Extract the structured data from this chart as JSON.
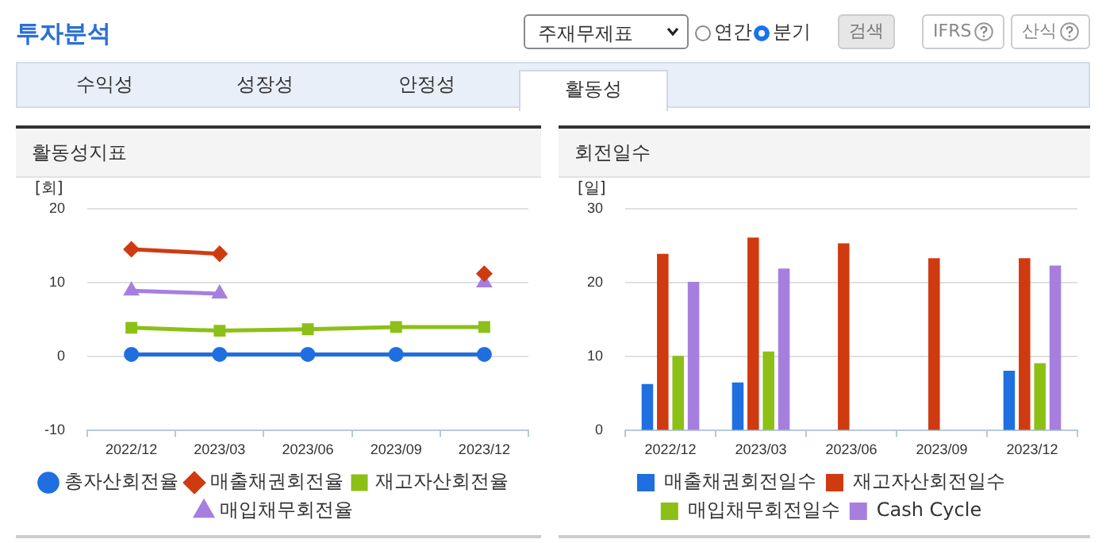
{
  "chart_data": [
    {
      "type": "other",
      "title": "투자분석",
      "annotations": [
        "주재무제표",
        "연간",
        "분기",
        "검색",
        "IFRS",
        "산식",
        "수익성",
        "성장성",
        "안정성",
        "활동성"
      ]
    },
    {
      "type": "line",
      "title": "활동성지표",
      "ylabel": "[회]",
      "categories": [
        "2022/12",
        "2023/03",
        "2023/06",
        "2023/09",
        "2023/12"
      ],
      "ylim": [
        -10,
        20
      ],
      "yticks": [
        -10,
        0,
        10,
        20
      ],
      "grid": "y",
      "legend": "bottom",
      "series": [
        {
          "name": "총자산회전율",
          "color": "#1f6fe0",
          "marker": "circle",
          "values": [
            0.3,
            0.3,
            0.3,
            0.3,
            0.3
          ]
        },
        {
          "name": "매출채권회전율",
          "color": "#d03a10",
          "marker": "diamond",
          "values": [
            14.5,
            13.9,
            null,
            null,
            11.2
          ]
        },
        {
          "name": "재고자산회전율",
          "color": "#8cc016",
          "marker": "square",
          "values": [
            3.9,
            3.5,
            3.7,
            4.0,
            4.0
          ]
        },
        {
          "name": "매입채무회전율",
          "color": "#a67fde",
          "marker": "triangle",
          "values": [
            8.9,
            8.5,
            null,
            null,
            10.0
          ]
        }
      ]
    },
    {
      "type": "bar",
      "title": "회전일수",
      "ylabel": "[일]",
      "categories": [
        "2022/12",
        "2023/03",
        "2023/06",
        "2023/09",
        "2023/12"
      ],
      "ylim": [
        0,
        30
      ],
      "yticks": [
        0,
        10,
        20,
        30
      ],
      "grid": "y",
      "legend": "bottom",
      "series": [
        {
          "name": "매출채권회전일수",
          "color": "#1f6fe0",
          "values": [
            6.3,
            6.5,
            null,
            null,
            8.1
          ]
        },
        {
          "name": "재고자산회전일수",
          "color": "#d03a10",
          "values": [
            23.9,
            26.1,
            25.3,
            23.3,
            23.3
          ]
        },
        {
          "name": "매입채무회전일수",
          "color": "#8cc016",
          "values": [
            10.1,
            10.7,
            null,
            null,
            9.1
          ]
        },
        {
          "name": "Cash Cycle",
          "color": "#a67fde",
          "values": [
            20.1,
            21.9,
            null,
            null,
            22.3
          ]
        }
      ]
    }
  ]
}
